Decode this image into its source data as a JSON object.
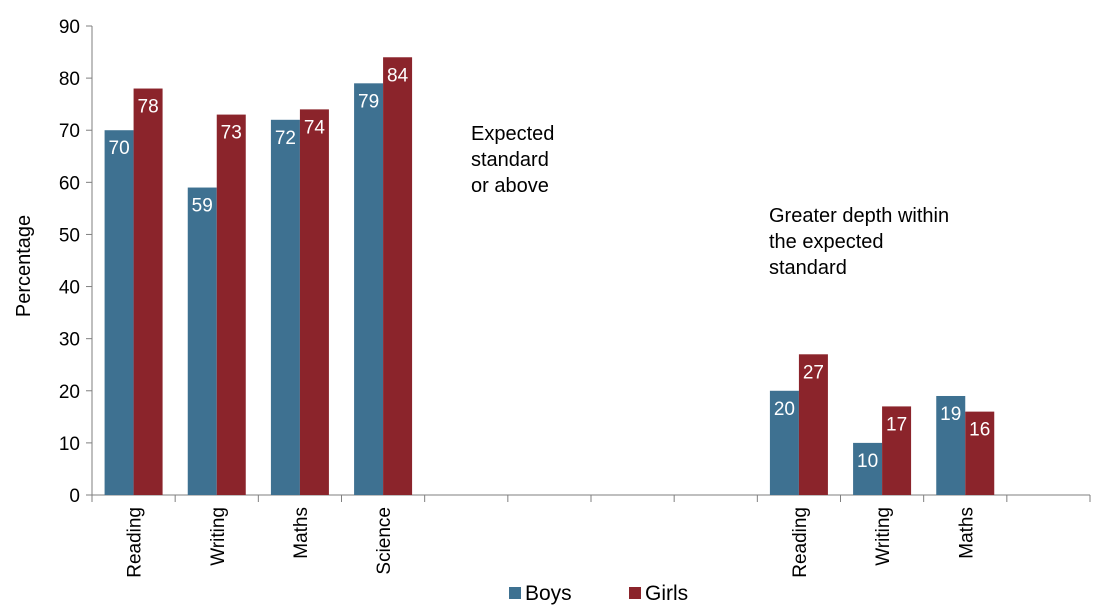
{
  "chart_data": {
    "type": "bar",
    "ylabel": "Percentage",
    "ylim": [
      0,
      90
    ],
    "yticks": [
      0,
      10,
      20,
      30,
      40,
      50,
      60,
      70,
      80,
      90
    ],
    "grid": false,
    "legend_position": "bottom",
    "categories": [
      "Reading",
      "Writing",
      "Maths",
      "Science",
      "",
      "",
      "",
      "",
      "Reading",
      "Writing",
      "Maths",
      ""
    ],
    "series": [
      {
        "name": "Boys",
        "color": "#3e7191",
        "values": [
          70,
          59,
          72,
          79,
          null,
          null,
          null,
          null,
          20,
          10,
          19,
          null
        ]
      },
      {
        "name": "Girls",
        "color": "#8b242b",
        "values": [
          78,
          73,
          74,
          84,
          null,
          null,
          null,
          null,
          27,
          17,
          16,
          null
        ]
      }
    ],
    "annotations": [
      {
        "lines": [
          "Expected",
          "standard",
          "or above"
        ]
      },
      {
        "lines": [
          "Greater depth within",
          "the expected",
          "standard"
        ]
      }
    ]
  }
}
